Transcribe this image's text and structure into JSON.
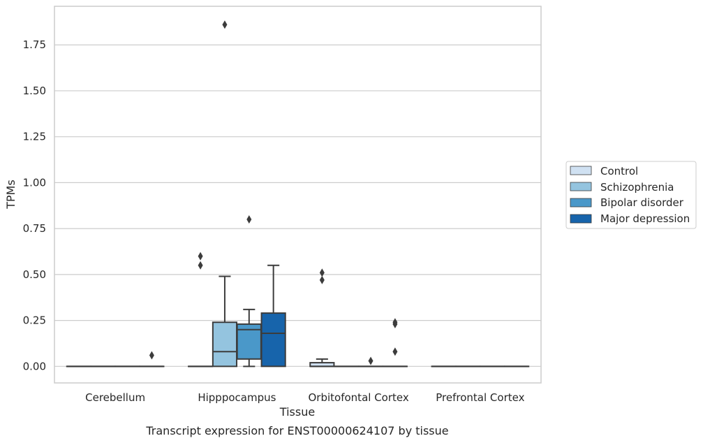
{
  "chart_data": {
    "type": "boxplot",
    "caption": "Transcript expression for ENST00000624107 by tissue",
    "xlabel": "Tissue",
    "ylabel": "TPMs",
    "ylim": [
      -0.09,
      1.96
    ],
    "yticks": [
      "0.00",
      "0.25",
      "0.50",
      "0.75",
      "1.00",
      "1.25",
      "1.50",
      "1.75"
    ],
    "grid": "horizontal",
    "legend_position": "right",
    "categories": [
      "Cerebellum",
      "Hipppocampus",
      "Orbitofontal Cortex",
      "Prefrontal Cortex"
    ],
    "series": [
      {
        "name": "Control",
        "color": "#d0e1f2",
        "boxes": [
          {
            "q1": 0,
            "median": 0,
            "q3": 0,
            "whislo": 0,
            "whishi": 0,
            "fliers": []
          },
          {
            "q1": 0,
            "median": 0,
            "q3": 0,
            "whislo": 0,
            "whishi": 0,
            "fliers": [
              0.55,
              0.6
            ]
          },
          {
            "q1": 0,
            "median": 0,
            "q3": 0.02,
            "whislo": 0,
            "whishi": 0.04,
            "fliers": [
              0.47,
              0.51
            ]
          },
          {
            "q1": 0,
            "median": 0,
            "q3": 0,
            "whislo": 0,
            "whishi": 0,
            "fliers": []
          }
        ]
      },
      {
        "name": "Schizophrenia",
        "color": "#94c4df",
        "boxes": [
          {
            "q1": 0,
            "median": 0,
            "q3": 0,
            "whislo": 0,
            "whishi": 0,
            "fliers": []
          },
          {
            "q1": 0,
            "median": 0.08,
            "q3": 0.24,
            "whislo": 0,
            "whishi": 0.49,
            "fliers": [
              1.86
            ]
          },
          {
            "q1": 0,
            "median": 0,
            "q3": 0,
            "whislo": 0,
            "whishi": 0,
            "fliers": []
          },
          {
            "q1": 0,
            "median": 0,
            "q3": 0,
            "whislo": 0,
            "whishi": 0,
            "fliers": []
          }
        ]
      },
      {
        "name": "Bipolar disorder",
        "color": "#4a98c9",
        "boxes": [
          {
            "q1": 0,
            "median": 0,
            "q3": 0,
            "whislo": 0,
            "whishi": 0,
            "fliers": []
          },
          {
            "q1": 0.04,
            "median": 0.2,
            "q3": 0.23,
            "whislo": 0,
            "whishi": 0.31,
            "fliers": [
              0.8
            ]
          },
          {
            "q1": 0,
            "median": 0,
            "q3": 0,
            "whislo": 0,
            "whishi": 0,
            "fliers": [
              0.03
            ]
          },
          {
            "q1": 0,
            "median": 0,
            "q3": 0,
            "whislo": 0,
            "whishi": 0,
            "fliers": []
          }
        ]
      },
      {
        "name": "Major depression",
        "color": "#1764ab",
        "boxes": [
          {
            "q1": 0,
            "median": 0,
            "q3": 0,
            "whislo": 0,
            "whishi": 0,
            "fliers": [
              0.06
            ]
          },
          {
            "q1": 0,
            "median": 0.18,
            "q3": 0.29,
            "whislo": 0,
            "whishi": 0.55,
            "fliers": []
          },
          {
            "q1": 0,
            "median": 0,
            "q3": 0,
            "whislo": 0,
            "whishi": 0,
            "fliers": [
              0.08,
              0.23,
              0.24
            ]
          },
          {
            "q1": 0,
            "median": 0,
            "q3": 0,
            "whislo": 0,
            "whishi": 0,
            "fliers": []
          }
        ]
      }
    ]
  }
}
